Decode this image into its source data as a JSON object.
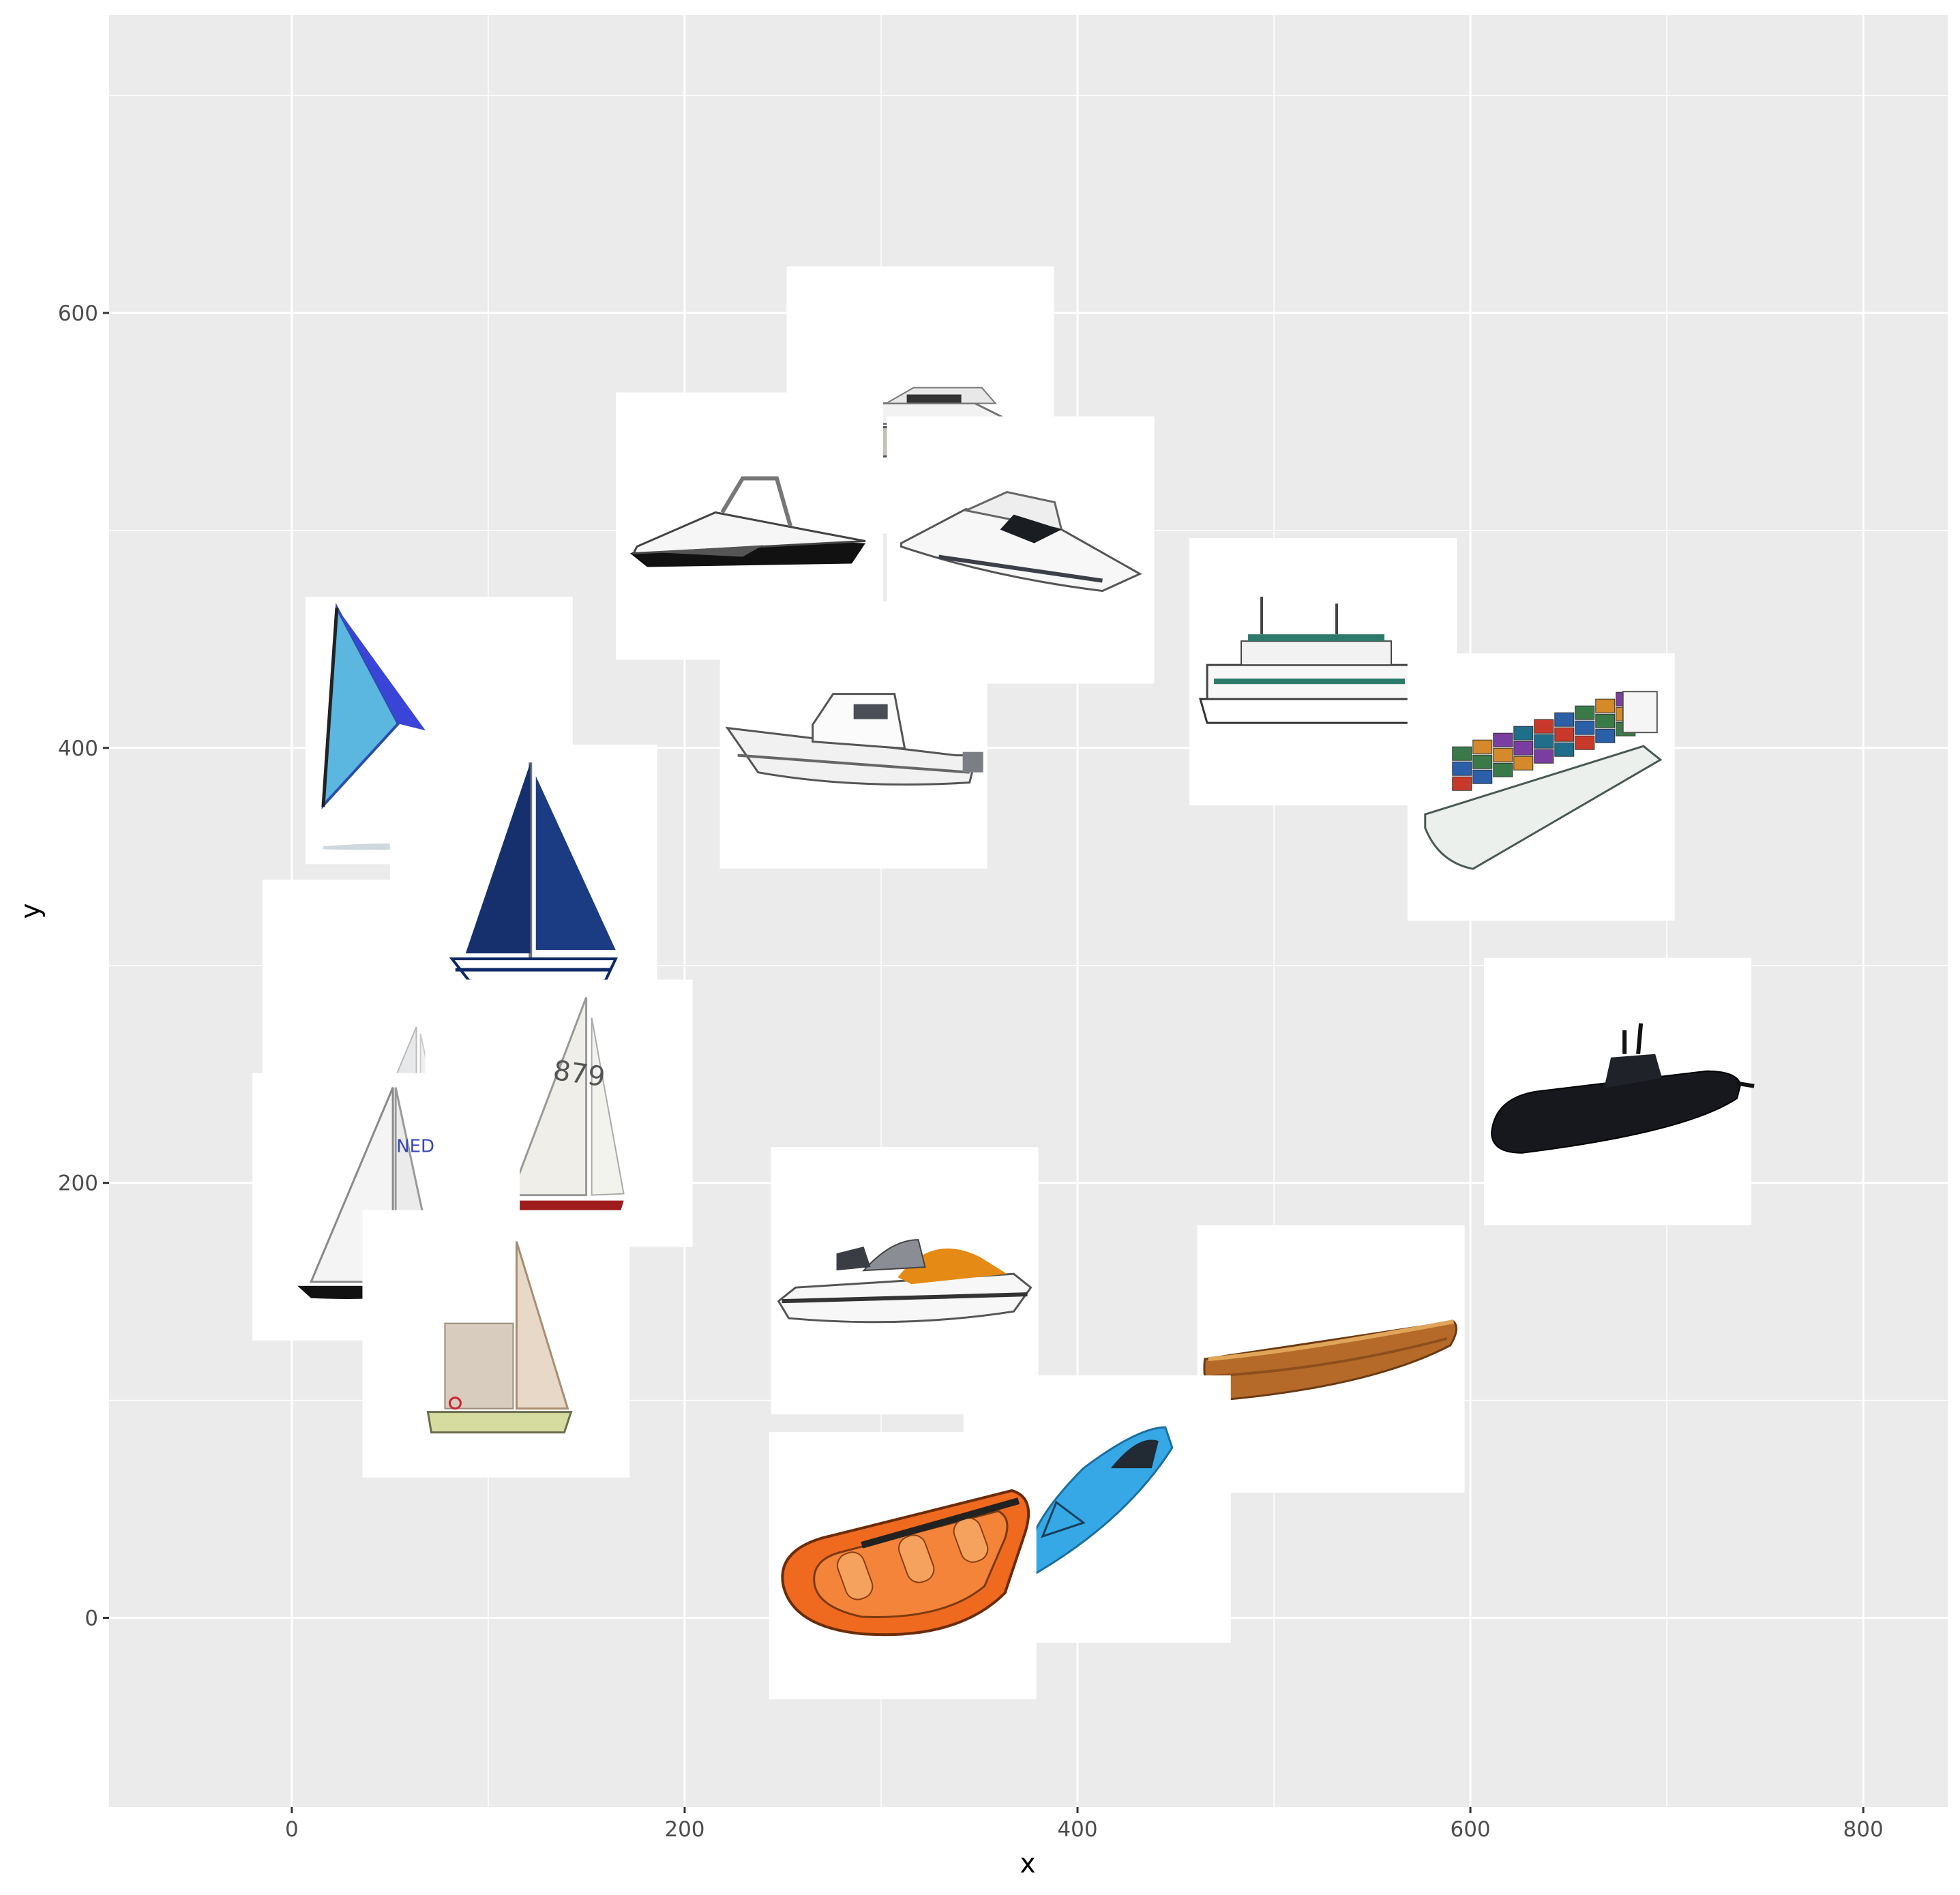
{
  "chart_data": {
    "type": "scatter",
    "title": "",
    "xlabel": "x",
    "ylabel": "y",
    "xlim": [
      -93,
      843
    ],
    "ylim": [
      -87,
      737
    ],
    "x_ticks": [
      0,
      200,
      400,
      600,
      800
    ],
    "y_ticks": [
      0,
      200,
      400,
      600
    ],
    "x_tick_labels": [
      "0",
      "200",
      "400",
      "600",
      "800"
    ],
    "y_tick_labels": [
      "0",
      "200",
      "400",
      "600"
    ],
    "grid": true,
    "legend": "none",
    "points": [
      {
        "x": 75,
        "y": 408,
        "icon": "windsurf-board-icon"
      },
      {
        "x": 53,
        "y": 278,
        "icon": "sailboat-small-icon"
      },
      {
        "x": 118,
        "y": 340,
        "icon": "sailboat-blue-sails-icon"
      },
      {
        "x": 136,
        "y": 232,
        "icon": "sailboat-879-icon"
      },
      {
        "x": 48,
        "y": 189,
        "icon": "racing-sailboat-icon"
      },
      {
        "x": 104,
        "y": 126,
        "icon": "cruising-sailboat-icon"
      },
      {
        "x": 320,
        "y": 560,
        "icon": "motor-yacht-icon"
      },
      {
        "x": 233,
        "y": 502,
        "icon": "speedboat-icon"
      },
      {
        "x": 371,
        "y": 491,
        "icon": "luxury-yacht-icon"
      },
      {
        "x": 286,
        "y": 406,
        "icon": "fishing-boat-icon"
      },
      {
        "x": 525,
        "y": 435,
        "icon": "ferry-icon"
      },
      {
        "x": 636,
        "y": 382,
        "icon": "container-ship-icon"
      },
      {
        "x": 675,
        "y": 242,
        "icon": "submarine-icon"
      },
      {
        "x": 312,
        "y": 155,
        "icon": "jet-ski-icon"
      },
      {
        "x": 529,
        "y": 119,
        "icon": "wooden-rowboat-icon"
      },
      {
        "x": 410,
        "y": 50,
        "icon": "kayak-icon"
      },
      {
        "x": 311,
        "y": 24,
        "icon": "inflatable-raft-icon"
      }
    ]
  }
}
